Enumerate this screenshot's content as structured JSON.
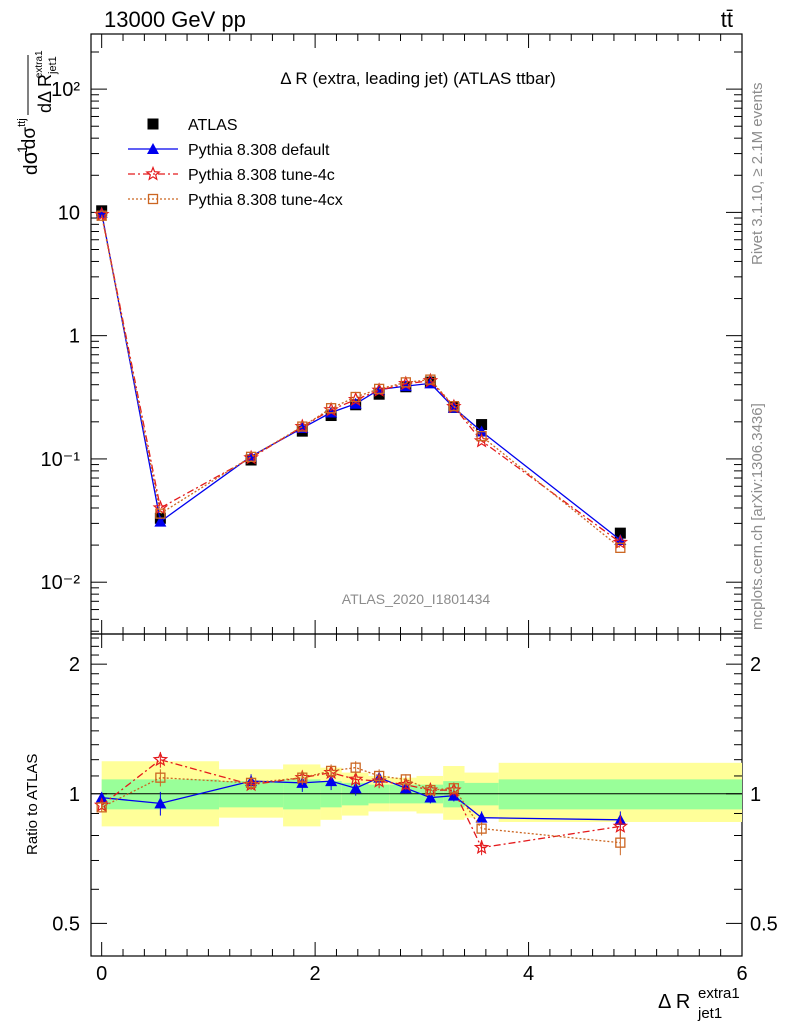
{
  "header": {
    "left": "13000 GeV pp",
    "right": "tt̄"
  },
  "chart_data": [
    {
      "type": "scatter",
      "title": "Δ R (extra, leading jet) (ATLAS ttbar)",
      "analysis_label": "ATLAS_2020_I1801434",
      "ylabel_text": "1/σ dσ^{ttj}/dΔ R^{extra1}_{jet1}",
      "yscale": "log",
      "xlim": [
        -0.1,
        6.0
      ],
      "ylim": [
        0.0038,
        280
      ],
      "y_ticks": [
        {
          "value": 0.01,
          "label": "10⁻²"
        },
        {
          "value": 0.1,
          "label": "10⁻¹"
        },
        {
          "value": 1,
          "label": "1"
        },
        {
          "value": 10,
          "label": "10"
        },
        {
          "value": 100,
          "label": "10²"
        }
      ],
      "legend_position": "top-left",
      "x": [
        0.0,
        0.55,
        1.4,
        1.88,
        2.15,
        2.38,
        2.6,
        2.85,
        3.08,
        3.3,
        3.56,
        4.86
      ],
      "series": [
        {
          "name": "ATLAS",
          "color": "#000000",
          "marker": "square",
          "values": [
            10.3,
            0.033,
            0.098,
            0.168,
            0.225,
            0.275,
            0.335,
            0.385,
            0.42,
            0.262,
            0.19,
            0.025
          ]
        },
        {
          "name": "Pythia 8.308 default",
          "color": "#0000ee",
          "marker": "triangle",
          "values": [
            9.9,
            0.031,
            0.105,
            0.178,
            0.238,
            0.28,
            0.365,
            0.39,
            0.41,
            0.26,
            0.167,
            0.022
          ]
        },
        {
          "name": "Pythia 8.308 tune-4c",
          "color": "#e41a1c",
          "marker": "star",
          "values": [
            9.6,
            0.04,
            0.102,
            0.183,
            0.25,
            0.303,
            0.36,
            0.408,
            0.43,
            0.265,
            0.14,
            0.021
          ]
        },
        {
          "name": "Pythia 8.308 tune-4cx",
          "color": "#cc6622",
          "marker": "open-square",
          "values": [
            9.4,
            0.036,
            0.104,
            0.183,
            0.258,
            0.318,
            0.37,
            0.418,
            0.44,
            0.268,
            0.153,
            0.019
          ]
        }
      ]
    },
    {
      "type": "scatter",
      "ylabel": "Ratio to ATLAS",
      "xlabel": "Δ R^{extra1}_{jet1}",
      "xlim": [
        -0.1,
        6.0
      ],
      "ylim": [
        0.42,
        2.35
      ],
      "yscale": "log",
      "x_ticks": [
        0,
        2,
        4,
        6
      ],
      "y_ticks": [
        0.5,
        1,
        2
      ],
      "x": [
        0.0,
        0.55,
        1.4,
        1.88,
        2.15,
        2.38,
        2.6,
        2.85,
        3.08,
        3.3,
        3.56,
        4.86
      ],
      "bins": [
        {
          "lo": 0.0,
          "hi": 1.1,
          "inner": [
            0.92,
            1.08
          ],
          "outer": [
            0.84,
            1.19
          ]
        },
        {
          "lo": 1.1,
          "hi": 1.7,
          "inner": [
            0.93,
            1.07
          ],
          "outer": [
            0.88,
            1.14
          ]
        },
        {
          "lo": 1.7,
          "hi": 2.05,
          "inner": [
            0.92,
            1.08
          ],
          "outer": [
            0.84,
            1.17
          ]
        },
        {
          "lo": 2.05,
          "hi": 2.25,
          "inner": [
            0.93,
            1.07
          ],
          "outer": [
            0.87,
            1.15
          ]
        },
        {
          "lo": 2.25,
          "hi": 2.5,
          "inner": [
            0.94,
            1.06
          ],
          "outer": [
            0.89,
            1.12
          ]
        },
        {
          "lo": 2.5,
          "hi": 2.7,
          "inner": [
            0.95,
            1.05
          ],
          "outer": [
            0.91,
            1.1
          ]
        },
        {
          "lo": 2.7,
          "hi": 2.95,
          "inner": [
            0.95,
            1.05
          ],
          "outer": [
            0.91,
            1.09
          ]
        },
        {
          "lo": 2.95,
          "hi": 3.2,
          "inner": [
            0.95,
            1.05
          ],
          "outer": [
            0.9,
            1.1
          ]
        },
        {
          "lo": 3.2,
          "hi": 3.4,
          "inner": [
            0.93,
            1.07
          ],
          "outer": [
            0.87,
            1.16
          ]
        },
        {
          "lo": 3.4,
          "hi": 3.72,
          "inner": [
            0.94,
            1.06
          ],
          "outer": [
            0.88,
            1.12
          ]
        },
        {
          "lo": 3.72,
          "hi": 6.0,
          "inner": [
            0.92,
            1.08
          ],
          "outer": [
            0.86,
            1.18
          ]
        }
      ],
      "series": [
        {
          "name": "Pythia 8.308 default",
          "color": "#0000ee",
          "marker": "triangle",
          "values": [
            0.98,
            0.95,
            1.07,
            1.06,
            1.07,
            1.03,
            1.09,
            1.03,
            0.98,
            0.99,
            0.88,
            0.87
          ],
          "errors": [
            0.02,
            0.06,
            0.04,
            0.05,
            0.05,
            0.04,
            0.04,
            0.03,
            0.03,
            0.03,
            0.03,
            0.04
          ]
        },
        {
          "name": "Pythia 8.308 tune-4c",
          "color": "#e41a1c",
          "marker": "star",
          "values": [
            0.94,
            1.2,
            1.05,
            1.09,
            1.12,
            1.08,
            1.07,
            1.05,
            1.02,
            1.02,
            0.75,
            0.84
          ],
          "errors": [
            0.02,
            0.05,
            0.03,
            0.04,
            0.04,
            0.04,
            0.04,
            0.03,
            0.03,
            0.03,
            0.03,
            0.05
          ]
        },
        {
          "name": "Pythia 8.308 tune-4cx",
          "color": "#cc6622",
          "marker": "open-square",
          "values": [
            0.93,
            1.09,
            1.06,
            1.09,
            1.13,
            1.15,
            1.1,
            1.08,
            1.02,
            1.03,
            0.83,
            0.77
          ],
          "errors": [
            0.02,
            0.05,
            0.03,
            0.04,
            0.04,
            0.04,
            0.04,
            0.03,
            0.03,
            0.03,
            0.03,
            0.05
          ]
        }
      ]
    }
  ],
  "side_labels": {
    "rivet": "Rivet 3.1.10, ≥ 2.1M events",
    "mcplots": "mcplots.cern.ch [arXiv:1306.3436]"
  }
}
